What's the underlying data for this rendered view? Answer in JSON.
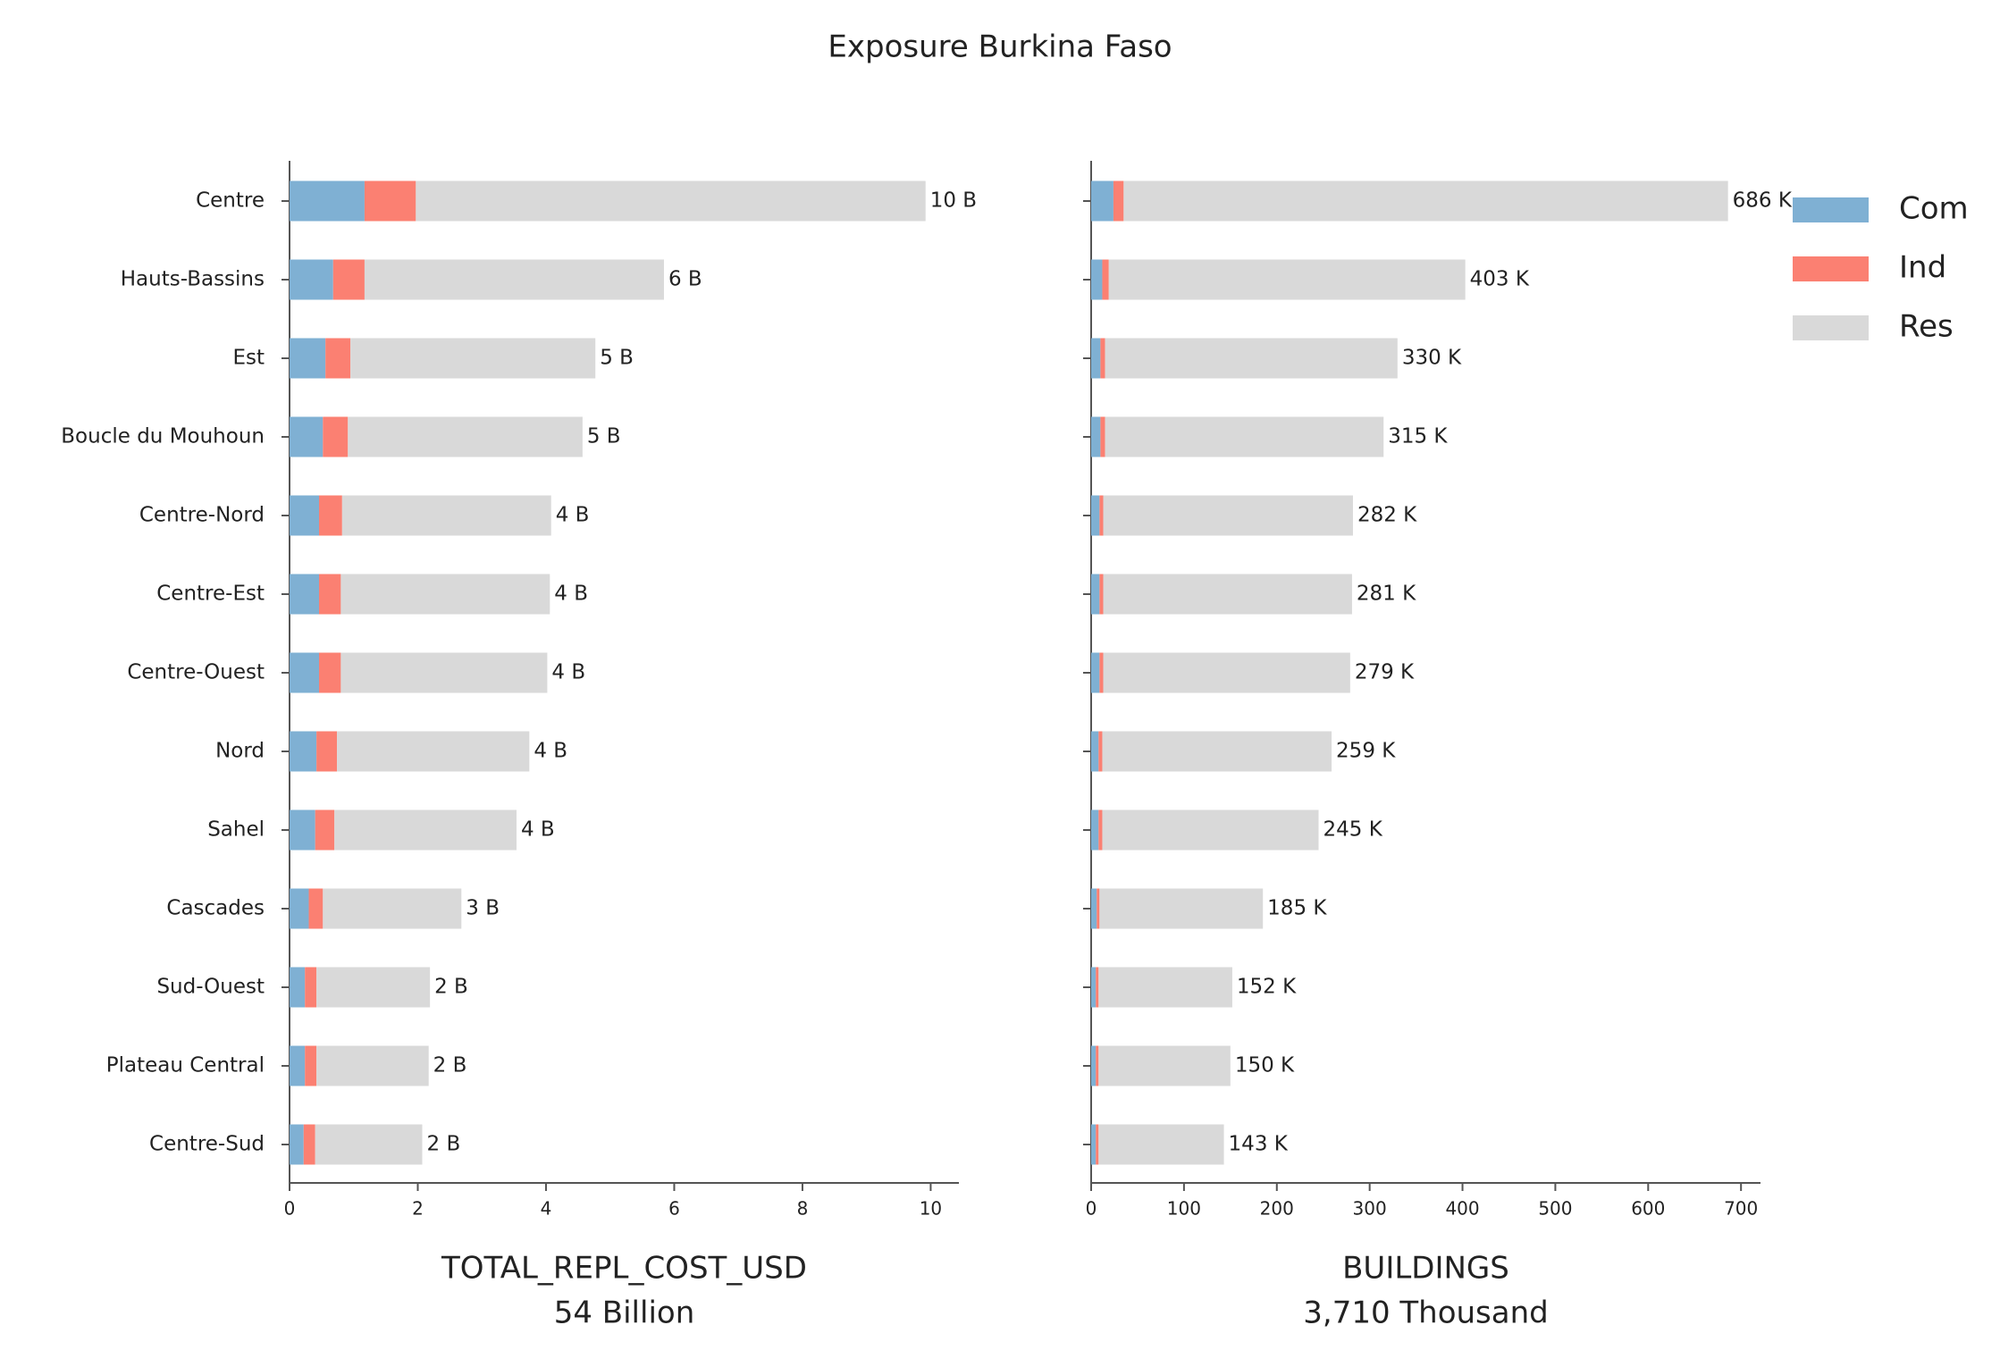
{
  "title": "Exposure Burkina Faso",
  "chart_data": [
    {
      "type": "hbar_stacked",
      "categories": [
        "Centre",
        "Hauts-Bassins",
        "Est",
        "Boucle du Mouhoun",
        "Centre-Nord",
        "Centre-Est",
        "Centre-Ouest",
        "Nord",
        "Sahel",
        "Cascades",
        "Sud-Ouest",
        "Plateau Central",
        "Centre-Sud"
      ],
      "series": [
        {
          "name": "Com",
          "color": "#7fb0d3",
          "values": [
            1.17,
            0.68,
            0.56,
            0.52,
            0.46,
            0.46,
            0.46,
            0.42,
            0.4,
            0.3,
            0.24,
            0.24,
            0.22
          ]
        },
        {
          "name": "Ind",
          "color": "#fb8072",
          "values": [
            0.8,
            0.49,
            0.39,
            0.39,
            0.36,
            0.34,
            0.34,
            0.32,
            0.3,
            0.22,
            0.18,
            0.18,
            0.18
          ]
        },
        {
          "name": "Res",
          "color": "#d9d9d9",
          "values": [
            7.95,
            4.67,
            3.82,
            3.66,
            3.26,
            3.26,
            3.22,
            3.0,
            2.84,
            2.16,
            1.77,
            1.75,
            1.67
          ]
        }
      ],
      "totals": {
        "values": [
          9.92,
          5.84,
          4.77,
          4.57,
          4.08,
          4.06,
          4.02,
          3.74,
          3.54,
          2.68,
          2.19,
          2.17,
          2.07
        ],
        "value_labels": [
          "10 B",
          "6 B",
          "5 B",
          "5 B",
          "4 B",
          "4 B",
          "4 B",
          "4 B",
          "4 B",
          "3 B",
          "2 B",
          "2 B",
          "2 B"
        ]
      },
      "xlabel": [
        "TOTAL_REPL_COST_USD",
        "54 Billion"
      ],
      "xlim": [
        0,
        10.44
      ],
      "xticks": [
        0,
        2,
        4,
        6,
        8,
        10
      ]
    },
    {
      "type": "hbar_stacked",
      "series": [
        {
          "name": "Com",
          "color": "#7fb0d3",
          "values": [
            24,
            12,
            10,
            10,
            9,
            9,
            9,
            8,
            8,
            6,
            5,
            5,
            5
          ]
        },
        {
          "name": "Ind",
          "color": "#fb8072",
          "values": [
            11,
            7,
            5,
            5,
            4,
            4,
            4,
            4,
            4,
            3,
            3,
            3,
            3
          ]
        },
        {
          "name": "Res",
          "color": "#d9d9d9",
          "values": [
            651,
            384,
            315,
            300,
            269,
            268,
            266,
            247,
            233,
            176,
            144,
            142,
            135
          ]
        }
      ],
      "totals": {
        "values": [
          686,
          403,
          330,
          315,
          282,
          281,
          279,
          259,
          245,
          185,
          152,
          150,
          143
        ],
        "value_labels": [
          "686 K",
          "403 K",
          "330 K",
          "315 K",
          "282 K",
          "281 K",
          "279 K",
          "259 K",
          "245 K",
          "185 K",
          "152 K",
          "150 K",
          "143 K"
        ]
      },
      "xlabel": [
        "BUILDINGS",
        "3,710 Thousand"
      ],
      "xlim": [
        0,
        721
      ],
      "xticks": [
        0,
        100,
        200,
        300,
        400,
        500,
        600,
        700
      ],
      "legend": "right"
    }
  ]
}
